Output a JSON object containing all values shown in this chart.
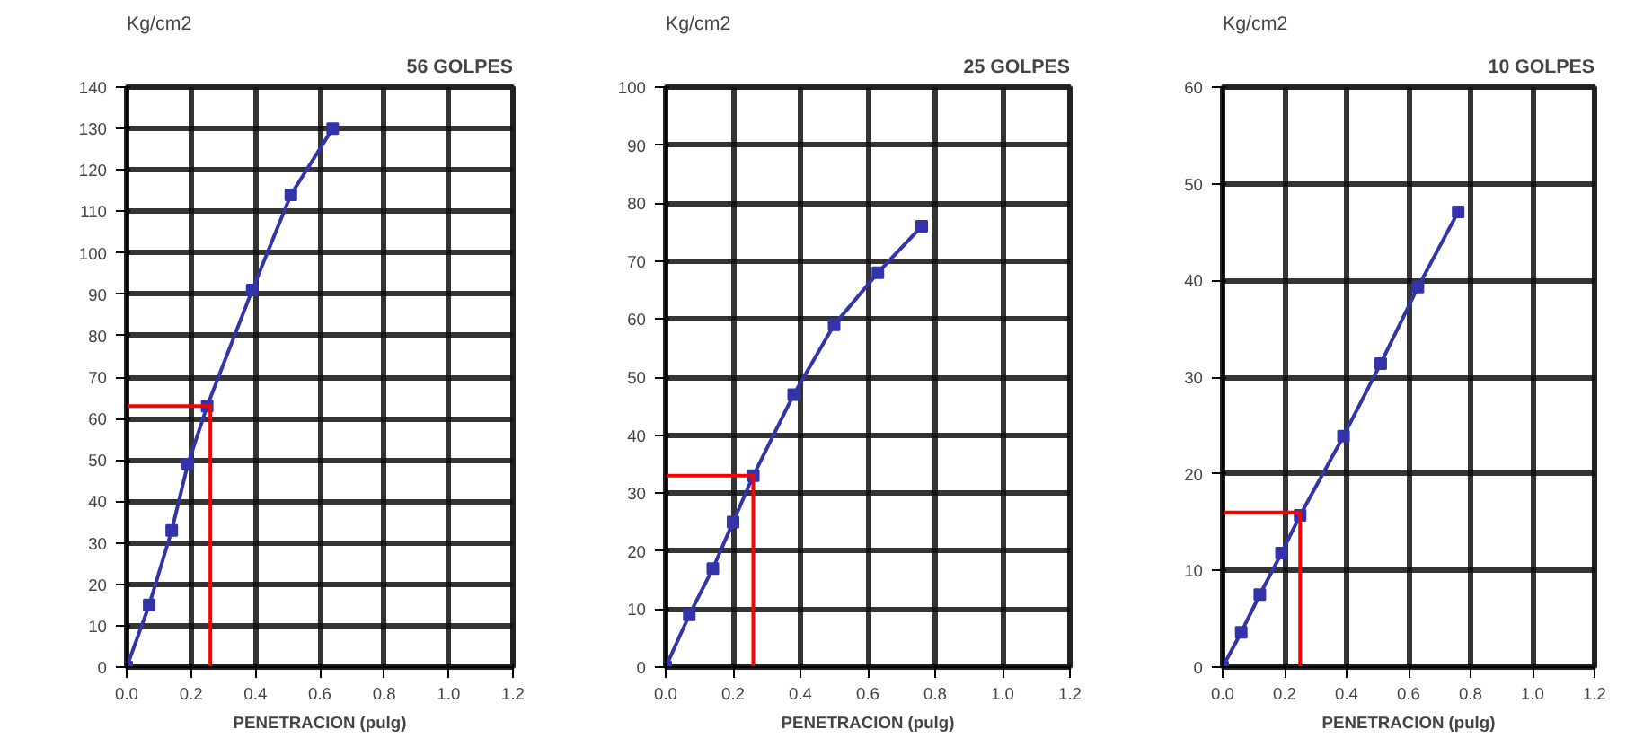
{
  "chart_data": [
    {
      "type": "line",
      "title": "56 GOLPES",
      "ylabel": "Kg/cm2",
      "xlabel": "PENETRACION (pulg)",
      "marker": "square",
      "grid": true,
      "xlim": [
        0,
        1.2
      ],
      "ylim": [
        0,
        140
      ],
      "xticks": [
        {
          "value": 0,
          "label": "0.0"
        },
        {
          "value": 0.2,
          "label": "0.2"
        },
        {
          "value": 0.4,
          "label": "0.4"
        },
        {
          "value": 0.6,
          "label": "0.6"
        },
        {
          "value": 0.8,
          "label": "0.8"
        },
        {
          "value": 1,
          "label": "1.0"
        },
        {
          "value": 1.2,
          "label": "1.2"
        }
      ],
      "yticks": [
        0,
        10,
        20,
        30,
        40,
        50,
        60,
        70,
        80,
        90,
        100,
        110,
        120,
        130,
        140
      ],
      "series": [
        {
          "color": "#3333aa",
          "x": [
            0,
            0.07,
            0.14,
            0.19,
            0.25,
            0.39,
            0.51,
            0.64
          ],
          "values": [
            0,
            15,
            33,
            49,
            63,
            91,
            114,
            130
          ]
        },
        {
          "color": "#ff0000",
          "marker": "none",
          "x": [
            0,
            0.26,
            0.26
          ],
          "values": [
            63,
            63,
            0
          ]
        }
      ]
    },
    {
      "type": "line",
      "title": "25 GOLPES",
      "ylabel": "Kg/cm2",
      "xlabel": "PENETRACION (pulg)",
      "marker": "square",
      "grid": true,
      "xlim": [
        0,
        1.2
      ],
      "ylim": [
        0,
        100
      ],
      "xticks": [
        {
          "value": 0,
          "label": "0.0"
        },
        {
          "value": 0.2,
          "label": "0.2"
        },
        {
          "value": 0.4,
          "label": "0.4"
        },
        {
          "value": 0.6,
          "label": "0.6"
        },
        {
          "value": 0.8,
          "label": "0.8"
        },
        {
          "value": 1,
          "label": "1.0"
        },
        {
          "value": 1.2,
          "label": "1.2"
        }
      ],
      "yticks": [
        0,
        10,
        20,
        30,
        40,
        50,
        60,
        70,
        80,
        90,
        100
      ],
      "series": [
        {
          "color": "#3333aa",
          "x": [
            0,
            0.07,
            0.14,
            0.2,
            0.26,
            0.38,
            0.5,
            0.63,
            0.76
          ],
          "values": [
            0,
            9,
            17,
            25,
            33,
            47,
            59,
            68,
            76
          ]
        },
        {
          "color": "#ff0000",
          "marker": "none",
          "x": [
            0,
            0.26,
            0.26
          ],
          "values": [
            33,
            33,
            0
          ]
        }
      ]
    },
    {
      "type": "line",
      "title": "10 GOLPES",
      "ylabel": "Kg/cm2",
      "xlabel": "PENETRACION (pulg)",
      "marker": "square",
      "grid": true,
      "xlim": [
        0,
        1.2
      ],
      "ylim": [
        0,
        60
      ],
      "xticks": [
        {
          "value": 0,
          "label": "0.0"
        },
        {
          "value": 0.2,
          "label": "0.2"
        },
        {
          "value": 0.4,
          "label": "0.4"
        },
        {
          "value": 0.6,
          "label": "0.6"
        },
        {
          "value": 0.8,
          "label": "0.8"
        },
        {
          "value": 1,
          "label": "1.0"
        },
        {
          "value": 1.2,
          "label": "1.2"
        }
      ],
      "yticks": [
        0,
        10,
        20,
        30,
        40,
        50,
        60
      ],
      "series": [
        {
          "color": "#3333aa",
          "x": [
            0,
            0.06,
            0.12,
            0.19,
            0.25,
            0.39,
            0.51,
            0.63,
            0.76
          ],
          "values": [
            0,
            3.6,
            7.5,
            11.8,
            15.7,
            23.9,
            31.4,
            39.3,
            47.1
          ]
        },
        {
          "color": "#ff0000",
          "marker": "none",
          "x": [
            0,
            0.25,
            0.25
          ],
          "values": [
            16,
            16,
            0
          ]
        }
      ]
    }
  ]
}
